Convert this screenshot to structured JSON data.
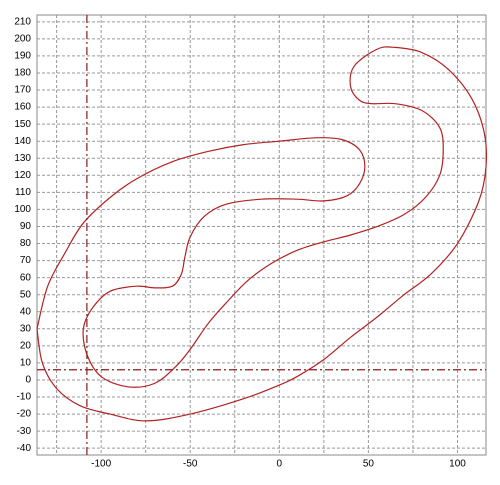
{
  "chart_data": {
    "type": "line",
    "xlim": [
      -136,
      116
    ],
    "ylim": [
      -44,
      214
    ],
    "xticks": [
      -100,
      -50,
      0,
      50,
      100
    ],
    "xminor": [
      -125,
      -75,
      -25,
      25,
      75
    ],
    "yticks": [
      -40,
      -30,
      -20,
      -10,
      0,
      10,
      20,
      30,
      40,
      50,
      60,
      70,
      80,
      90,
      100,
      110,
      120,
      130,
      140,
      150,
      160,
      170,
      180,
      190,
      200,
      210
    ],
    "grid": true,
    "crosshair": {
      "x": -108,
      "y": 6,
      "color": "#8b1a1a"
    },
    "series": [
      {
        "color": "#b22222",
        "x": [
          -136,
          -130,
          -120,
          -110,
          -95,
          -80,
          -60,
          -40,
          -20,
          0,
          20,
          35,
          45,
          48,
          45,
          38,
          25,
          10,
          -10,
          -30,
          -42,
          -50,
          -53,
          -55,
          -60,
          -70,
          -80,
          -95,
          -105,
          -110,
          -108,
          -100,
          -85,
          -70,
          -58,
          -50,
          -40,
          -30,
          -18,
          -5,
          10,
          25,
          40,
          55,
          70,
          82,
          90,
          92,
          90,
          80,
          65,
          52,
          45,
          40,
          42,
          55,
          65,
          80,
          95,
          108,
          115,
          116,
          112,
          100,
          85,
          70,
          55,
          40,
          25,
          10,
          0,
          -20,
          -50,
          -75,
          -95,
          -112,
          -125,
          -133,
          -136
        ],
        "y": [
          30,
          55,
          75,
          92,
          107,
          118,
          128,
          134,
          138,
          140,
          142,
          141,
          135,
          125,
          115,
          108,
          105,
          106,
          106,
          103,
          96,
          84,
          72,
          62,
          55,
          54,
          55,
          52,
          42,
          30,
          15,
          2,
          -4,
          -2,
          8,
          18,
          33,
          45,
          58,
          68,
          76,
          81,
          85,
          90,
          97,
          107,
          120,
          135,
          148,
          158,
          162,
          162,
          164,
          172,
          184,
          194,
          195,
          192,
          182,
          165,
          145,
          125,
          105,
          80,
          62,
          50,
          37,
          25,
          12,
          2,
          -3,
          -11,
          -20,
          -24,
          -20,
          -15,
          -5,
          10,
          30
        ]
      }
    ]
  }
}
